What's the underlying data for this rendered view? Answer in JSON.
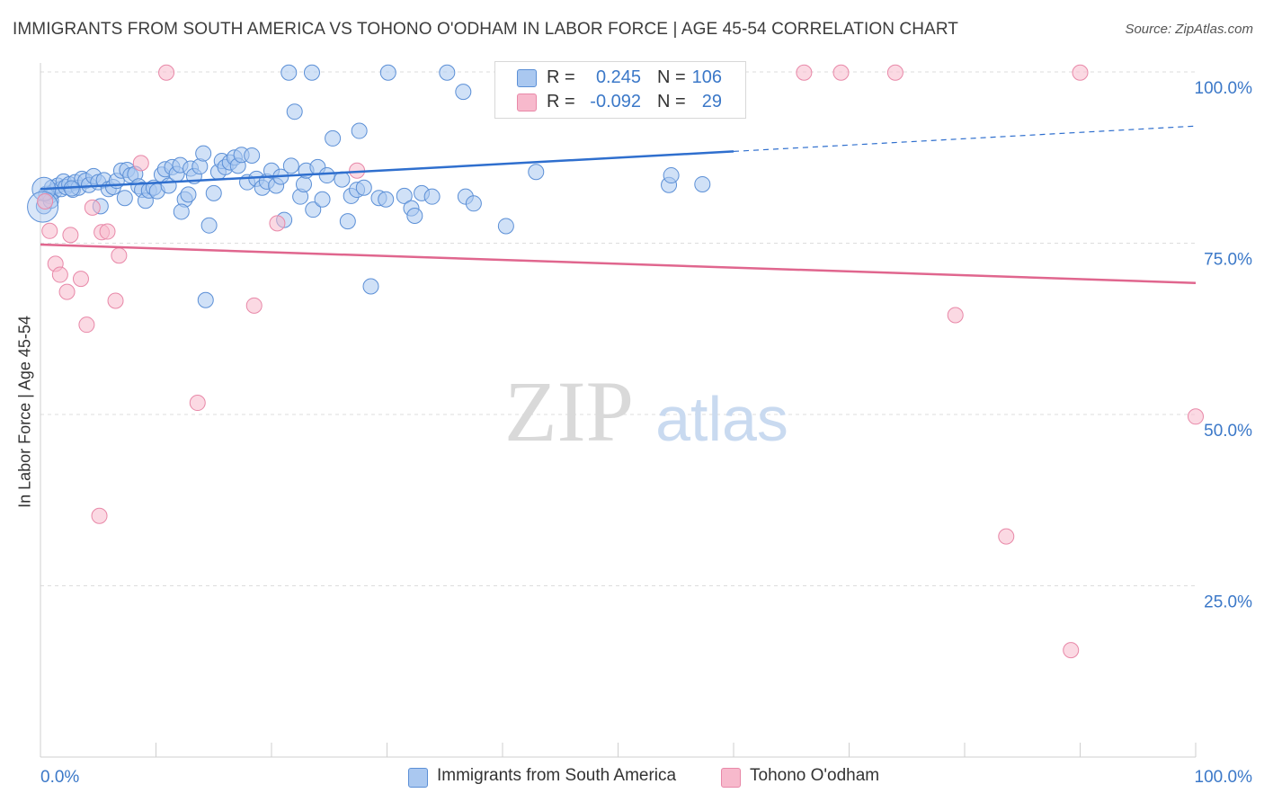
{
  "header": {
    "title": "IMMIGRANTS FROM SOUTH AMERICA VS TOHONO O'ODHAM IN LABOR FORCE | AGE 45-54 CORRELATION CHART",
    "source": "Source: ZipAtlas.com"
  },
  "watermark": {
    "zip": "ZIP",
    "atlas": "atlas"
  },
  "legend": {
    "rows": [
      {
        "r_label": "R =",
        "r_value": "0.245",
        "n_label": "N =",
        "n_value": "106"
      },
      {
        "r_label": "R =",
        "r_value": "-0.092",
        "n_label": "N =",
        "n_value": "29"
      }
    ]
  },
  "bottom_legend": {
    "series1": "Immigrants from South America",
    "series2": "Tohono O'odham"
  },
  "chart_data": {
    "type": "scatter",
    "title": "IMMIGRANTS FROM SOUTH AMERICA VS TOHONO O'ODHAM IN LABOR FORCE | AGE 45-54 CORRELATION CHART",
    "xlabel": "",
    "ylabel": "In Labor Force | Age 45-54",
    "xlim": [
      0,
      100
    ],
    "ylim": [
      0,
      102
    ],
    "x_tick_labels": [
      "0.0%",
      "100.0%"
    ],
    "y_ticks": [
      25,
      50,
      75,
      100
    ],
    "y_tick_labels": [
      "25.0%",
      "50.0%",
      "75.0%",
      "100.0%"
    ],
    "grid": true,
    "legend_position": "top-center",
    "colors": {
      "series1_fill": "#aac8f0",
      "series1_stroke": "#5b8fd6",
      "series1_line": "#2f6fce",
      "series2_fill": "#f7b9cc",
      "series2_stroke": "#e888a8",
      "series2_line": "#e0668e",
      "tick_label": "#3b78c8",
      "grid": "#dddddd"
    },
    "series": [
      {
        "name": "Immigrants from South America",
        "trend": {
          "x0": 0,
          "y0": 82.9,
          "x1": 60,
          "y1": 88.4,
          "dash_to_x": 100,
          "dash_to_y": 92.1
        },
        "points": [
          [
            0.3,
            80.4
          ],
          [
            0.5,
            82.2
          ],
          [
            0.8,
            81.9
          ],
          [
            1.0,
            83.1
          ],
          [
            1.2,
            82.6
          ],
          [
            1.5,
            83.4
          ],
          [
            1.8,
            82.9
          ],
          [
            2.0,
            84.0
          ],
          [
            2.2,
            83.2
          ],
          [
            2.5,
            83.6
          ],
          [
            2.8,
            82.8
          ],
          [
            3.0,
            83.9
          ],
          [
            3.3,
            83.1
          ],
          [
            3.6,
            84.4
          ],
          [
            3.9,
            84.1
          ],
          [
            4.2,
            83.5
          ],
          [
            4.6,
            84.8
          ],
          [
            5.0,
            83.9
          ],
          [
            5.2,
            80.4
          ],
          [
            5.5,
            84.2
          ],
          [
            5.9,
            82.9
          ],
          [
            6.3,
            83.2
          ],
          [
            6.6,
            84.1
          ],
          [
            7.0,
            85.6
          ],
          [
            7.3,
            81.6
          ],
          [
            7.5,
            85.7
          ],
          [
            7.8,
            84.9
          ],
          [
            8.2,
            85.1
          ],
          [
            8.5,
            83.3
          ],
          [
            8.8,
            82.8
          ],
          [
            9.1,
            81.2
          ],
          [
            9.4,
            82.7
          ],
          [
            9.8,
            83.1
          ],
          [
            10.1,
            82.6
          ],
          [
            10.5,
            85.0
          ],
          [
            10.8,
            85.8
          ],
          [
            11.1,
            83.4
          ],
          [
            11.4,
            86.1
          ],
          [
            11.8,
            85.1
          ],
          [
            12.1,
            86.4
          ],
          [
            12.5,
            81.4
          ],
          [
            12.8,
            82.1
          ],
          [
            13.0,
            85.9
          ],
          [
            13.3,
            84.8
          ],
          [
            13.8,
            86.2
          ],
          [
            14.1,
            88.1
          ],
          [
            14.6,
            77.6
          ],
          [
            15.0,
            82.3
          ],
          [
            14.3,
            66.7
          ],
          [
            15.4,
            85.4
          ],
          [
            15.7,
            87.0
          ],
          [
            16.0,
            86.1
          ],
          [
            16.4,
            86.8
          ],
          [
            16.8,
            87.5
          ],
          [
            17.1,
            86.3
          ],
          [
            17.4,
            87.9
          ],
          [
            17.9,
            83.9
          ],
          [
            18.3,
            87.8
          ],
          [
            18.7,
            84.4
          ],
          [
            19.2,
            83.1
          ],
          [
            19.6,
            84.0
          ],
          [
            20.0,
            85.6
          ],
          [
            20.4,
            83.4
          ],
          [
            20.8,
            84.7
          ],
          [
            21.1,
            78.4
          ],
          [
            21.7,
            86.3
          ],
          [
            22.0,
            94.2
          ],
          [
            22.5,
            81.8
          ],
          [
            22.8,
            83.6
          ],
          [
            23.0,
            85.6
          ],
          [
            23.6,
            79.9
          ],
          [
            24.0,
            86.1
          ],
          [
            24.4,
            81.4
          ],
          [
            24.8,
            84.9
          ],
          [
            25.3,
            90.3
          ],
          [
            26.1,
            84.3
          ],
          [
            26.6,
            78.2
          ],
          [
            26.9,
            81.9
          ],
          [
            27.4,
            82.8
          ],
          [
            27.6,
            91.4
          ],
          [
            28.0,
            83.1
          ],
          [
            28.6,
            68.7
          ],
          [
            29.3,
            81.6
          ],
          [
            29.9,
            81.4
          ],
          [
            30.1,
            99.9
          ],
          [
            31.5,
            81.9
          ],
          [
            32.1,
            80.1
          ],
          [
            32.4,
            79.0
          ],
          [
            33.0,
            82.3
          ],
          [
            33.9,
            81.8
          ],
          [
            21.5,
            99.9
          ],
          [
            23.5,
            99.9
          ],
          [
            35.2,
            99.9
          ],
          [
            36.6,
            97.1
          ],
          [
            40.3,
            77.5
          ],
          [
            42.9,
            85.4
          ],
          [
            57.3,
            83.6
          ],
          [
            54.4,
            83.5
          ],
          [
            60.0,
            99.9
          ],
          [
            54.6,
            84.9
          ],
          [
            40.0,
            99.9
          ],
          [
            36.8,
            81.8
          ],
          [
            37.5,
            80.8
          ],
          [
            12.2,
            79.6
          ],
          [
            2.7,
            83.0
          ],
          [
            0.9,
            81.2
          ]
        ]
      },
      {
        "name": "Tohono O'odham",
        "trend": {
          "x0": 0,
          "y0": 74.8,
          "x1": 100,
          "y1": 69.2
        },
        "points": [
          [
            0.4,
            81.1
          ],
          [
            0.8,
            76.8
          ],
          [
            1.3,
            72.0
          ],
          [
            1.7,
            70.4
          ],
          [
            2.3,
            67.9
          ],
          [
            2.6,
            76.2
          ],
          [
            3.5,
            69.8
          ],
          [
            4.0,
            63.1
          ],
          [
            4.5,
            80.2
          ],
          [
            5.3,
            76.6
          ],
          [
            5.8,
            76.7
          ],
          [
            6.5,
            66.6
          ],
          [
            6.8,
            73.2
          ],
          [
            8.7,
            86.7
          ],
          [
            10.9,
            99.9
          ],
          [
            13.6,
            51.7
          ],
          [
            18.5,
            65.9
          ],
          [
            20.5,
            77.9
          ],
          [
            27.4,
            85.6
          ],
          [
            47.9,
            99.9
          ],
          [
            66.1,
            99.9
          ],
          [
            69.3,
            99.9
          ],
          [
            74.0,
            99.9
          ],
          [
            90.0,
            99.9
          ],
          [
            79.2,
            64.5
          ],
          [
            100.0,
            49.7
          ],
          [
            83.6,
            32.2
          ],
          [
            89.2,
            15.6
          ],
          [
            5.1,
            35.2
          ]
        ]
      }
    ]
  }
}
